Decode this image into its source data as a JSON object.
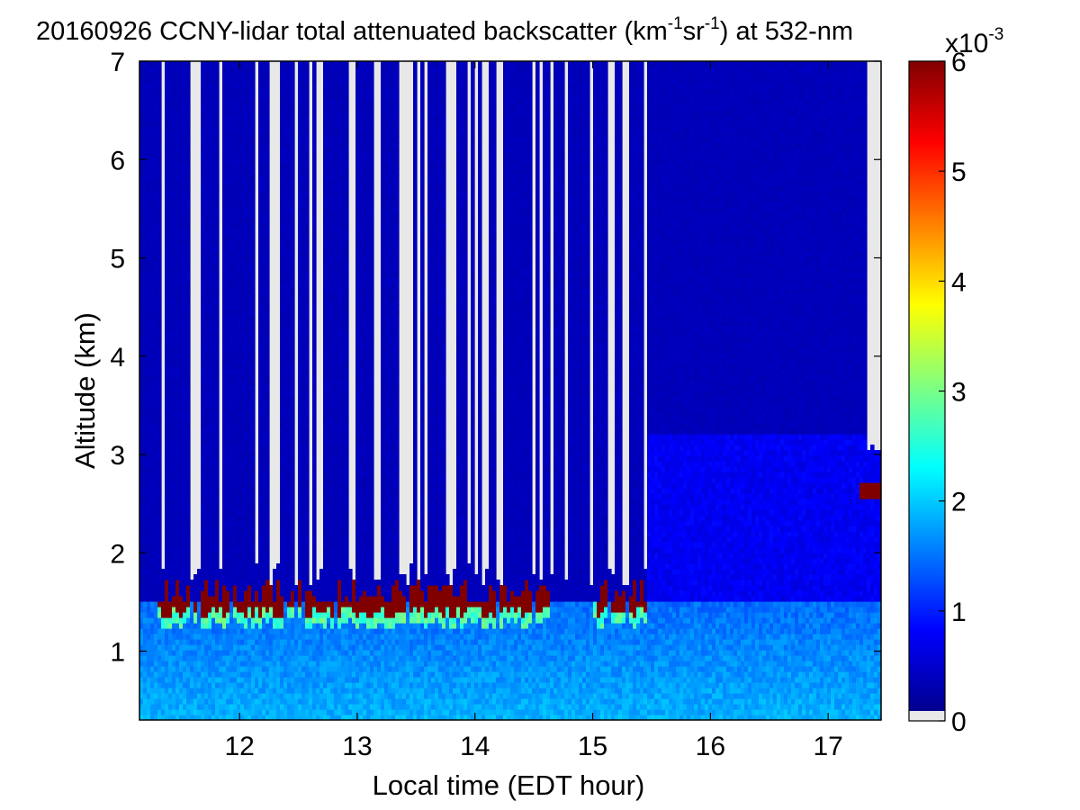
{
  "chart_data": {
    "type": "heatmap",
    "title": {
      "prefix": "20160926 CCNY-lidar total attenuated backscatter (km",
      "sup1": "-1",
      "mid": "sr",
      "sup2": "-1",
      "suffix": ") at 532-nm"
    },
    "xlabel": "Local time (EDT hour)",
    "ylabel": "Altitude (km)",
    "xlim": [
      11.15,
      17.45
    ],
    "ylim": [
      0.3,
      7.0
    ],
    "xticks": [
      12,
      13,
      14,
      15,
      16,
      17
    ],
    "yticks": [
      1,
      2,
      3,
      4,
      5,
      6,
      7
    ],
    "colormap": "jet",
    "nodata_color": "#e8e8e8",
    "colorbar": {
      "range": [
        0,
        6
      ],
      "ticks": [
        0,
        1,
        2,
        3,
        4,
        5,
        6
      ],
      "exponent_base": "x10",
      "exponent_power": "-3"
    },
    "regions": {
      "boundary_layer_top_km": 1.5,
      "cloud_layer_km": [
        1.3,
        1.7
      ],
      "cloud_time_span": [
        11.3,
        15.45
      ],
      "intermittent_profile_span": [
        11.15,
        15.45
      ],
      "continuous_profile_span": [
        15.45,
        17.45
      ],
      "aerosol_layer_top_km": 3.2,
      "upper_cloud": {
        "time": [
          17.25,
          17.45
        ],
        "alt_km": [
          2.55,
          2.7
        ]
      },
      "typical_values_e-3": {
        "free_troposphere": 0.3,
        "boundary_layer": 1.2,
        "cloud": 6.0
      }
    }
  }
}
